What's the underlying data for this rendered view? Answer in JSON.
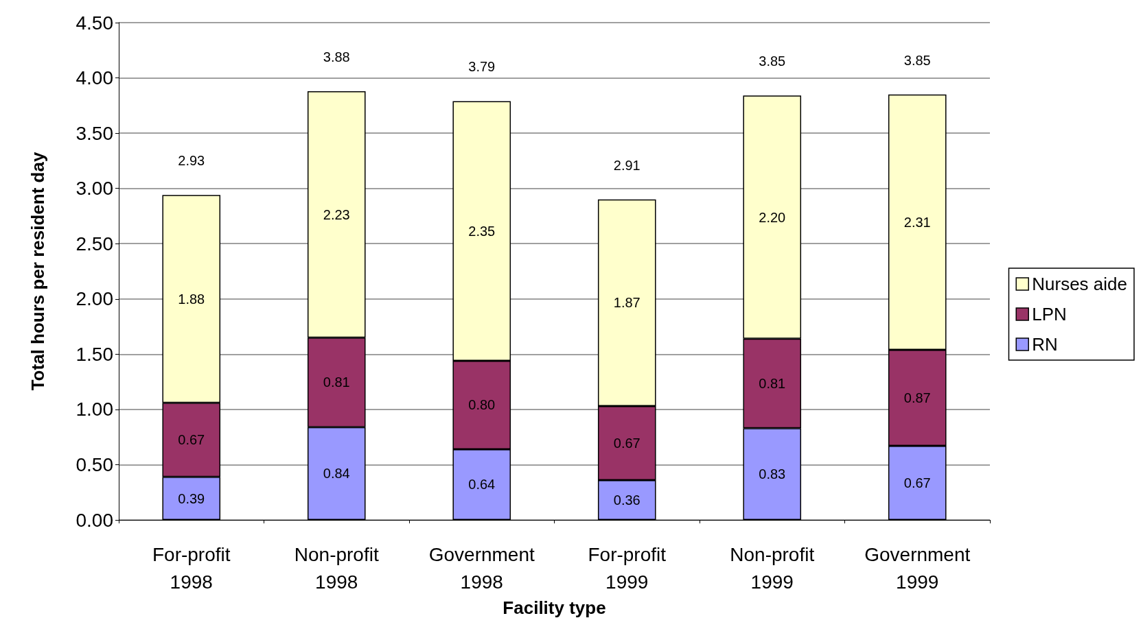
{
  "chart_data": {
    "type": "bar",
    "stacked": true,
    "xlabel": "Facility type",
    "ylabel": "Total hours per resident day",
    "categories": [
      "For-profit\n1998",
      "Non-profit\n1998",
      "Government\n1998",
      "For-profit\n1999",
      "Non-profit\n1999",
      "Government\n1999"
    ],
    "series": [
      {
        "name": "RN",
        "color": "#9999ff",
        "values": [
          0.39,
          0.84,
          0.64,
          0.36,
          0.83,
          0.67
        ],
        "value_labels": [
          "0.39",
          "0.84",
          "0.64",
          "0.36",
          "0.83",
          "0.67"
        ]
      },
      {
        "name": "LPN",
        "color": "#993366",
        "values": [
          0.67,
          0.81,
          0.8,
          0.67,
          0.81,
          0.87
        ],
        "value_labels": [
          "0.67",
          "0.81",
          "0.80",
          "0.67",
          "0.81",
          "0.87"
        ]
      },
      {
        "name": "Nurses aide",
        "color": "#ffffcc",
        "values": [
          1.88,
          2.23,
          2.35,
          1.87,
          2.2,
          2.31
        ],
        "value_labels": [
          "1.88",
          "2.23",
          "2.35",
          "1.87",
          "2.20",
          "2.31"
        ]
      }
    ],
    "totals": [
      "2.93",
      "3.88",
      "3.79",
      "2.91",
      "3.85",
      "3.85"
    ],
    "grid": "y",
    "legend": "right",
    "ylim": [
      0,
      4.5
    ],
    "yticks": [
      {
        "value": 0,
        "label": "0.00"
      },
      {
        "value": 0.5,
        "label": "0.50"
      },
      {
        "value": 1,
        "label": "1.00"
      },
      {
        "value": 1.5,
        "label": "1.50"
      },
      {
        "value": 2,
        "label": "2.00"
      },
      {
        "value": 2.5,
        "label": "2.50"
      },
      {
        "value": 3,
        "label": "3.00"
      },
      {
        "value": 3.5,
        "label": "3.50"
      },
      {
        "value": 4,
        "label": "4.00"
      },
      {
        "value": 4.5,
        "label": "4.50"
      }
    ]
  }
}
